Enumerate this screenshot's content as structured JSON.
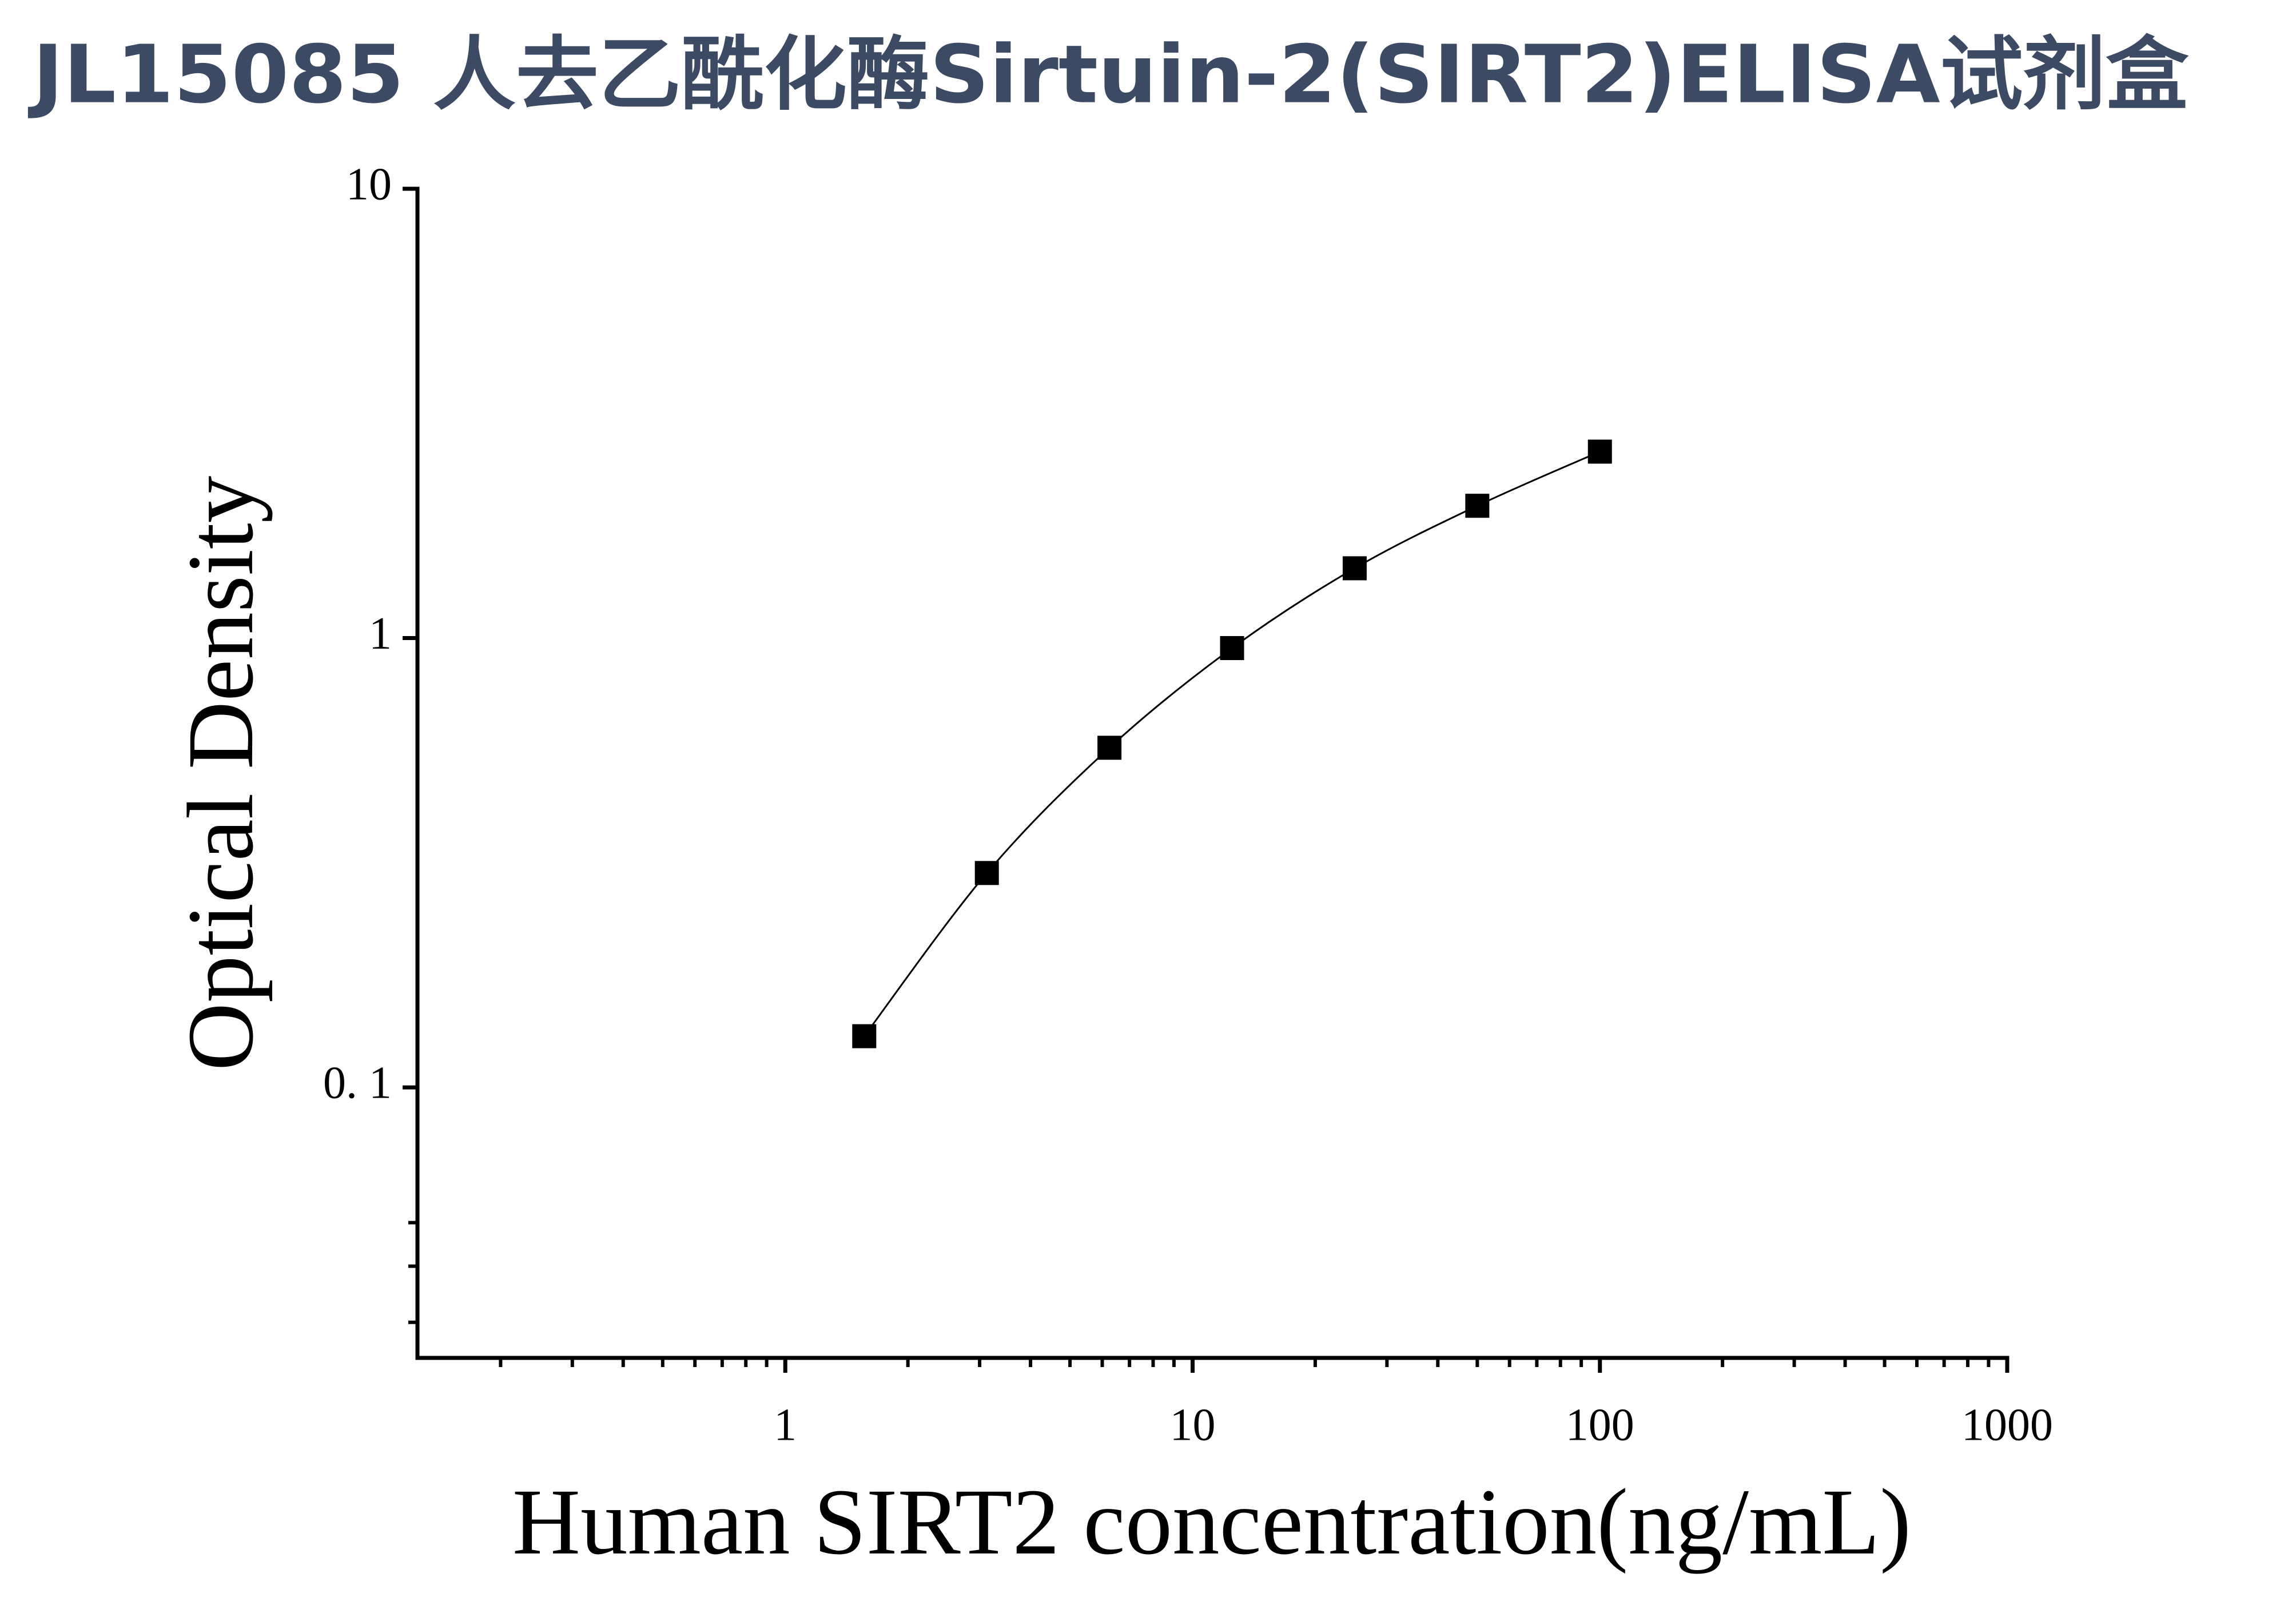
{
  "chart_data": {
    "type": "scatter",
    "title": "JL15085 人去乙酰化酶Sirtuin-2(SIRT2)ELISA试剂盒",
    "x_label": "Human SIRT2 concentration(ng/mL)",
    "y_label": "Optical Density",
    "x": [
      1.5625,
      3.125,
      6.25,
      12.5,
      25,
      50,
      100
    ],
    "series": [
      {
        "name": "SIRT2",
        "color": "#000000",
        "values": [
          0.13,
          0.3,
          0.57,
          0.95,
          1.43,
          1.97,
          2.6
        ]
      }
    ],
    "xscale": "log",
    "yscale": "log",
    "xlim": [
      0.125,
      1000
    ],
    "ylim": [
      0.025,
      10
    ],
    "xticks": [
      1,
      10,
      100,
      1000
    ],
    "yticks": [
      {
        "value": 0.1,
        "label": "0. 1"
      },
      1,
      10
    ],
    "xminorticks": [
      0.2,
      0.3,
      0.4,
      0.5,
      0.6,
      0.7,
      0.8,
      0.9,
      2,
      3,
      4,
      5,
      6,
      7,
      8,
      9,
      20,
      30,
      40,
      50,
      60,
      70,
      80,
      90,
      200,
      300,
      400,
      500,
      600,
      700,
      800,
      900
    ],
    "yminorticks": [
      0.03,
      0.04,
      0.05
    ],
    "grid": false
  }
}
